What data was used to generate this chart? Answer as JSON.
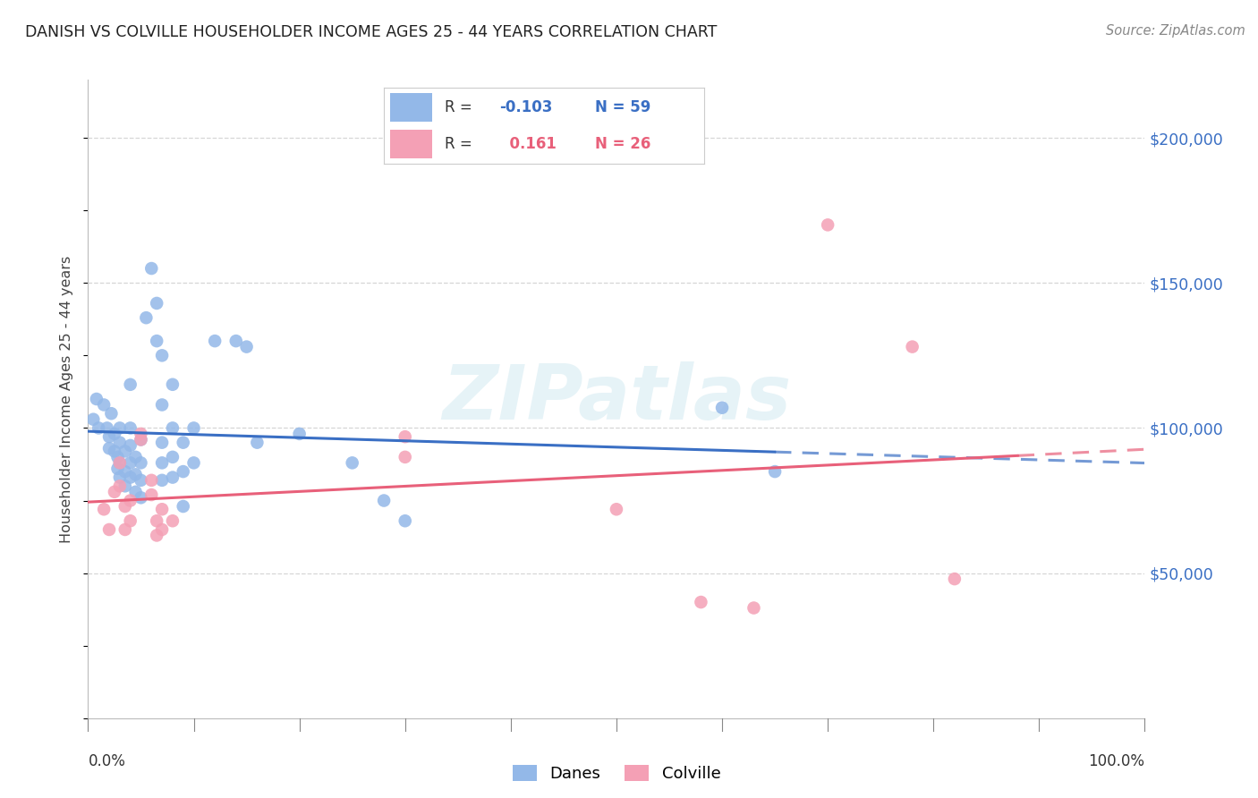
{
  "title": "DANISH VS COLVILLE HOUSEHOLDER INCOME AGES 25 - 44 YEARS CORRELATION CHART",
  "source": "Source: ZipAtlas.com",
  "ylabel": "Householder Income Ages 25 - 44 years",
  "watermark": "ZIPatlas",
  "danes_R": -0.103,
  "danes_N": 59,
  "colville_R": 0.161,
  "colville_N": 26,
  "danes_color": "#93b8e8",
  "colville_color": "#f4a0b5",
  "danes_line_color": "#3a6fc4",
  "colville_line_color": "#e8607a",
  "danes_scatter": [
    [
      0.005,
      103000
    ],
    [
      0.008,
      110000
    ],
    [
      0.01,
      100000
    ],
    [
      0.015,
      108000
    ],
    [
      0.018,
      100000
    ],
    [
      0.02,
      97000
    ],
    [
      0.02,
      93000
    ],
    [
      0.022,
      105000
    ],
    [
      0.025,
      98000
    ],
    [
      0.025,
      92000
    ],
    [
      0.028,
      90000
    ],
    [
      0.028,
      86000
    ],
    [
      0.03,
      100000
    ],
    [
      0.03,
      95000
    ],
    [
      0.03,
      88000
    ],
    [
      0.03,
      83000
    ],
    [
      0.035,
      92000
    ],
    [
      0.035,
      85000
    ],
    [
      0.035,
      80000
    ],
    [
      0.04,
      115000
    ],
    [
      0.04,
      100000
    ],
    [
      0.04,
      94000
    ],
    [
      0.04,
      88000
    ],
    [
      0.04,
      83000
    ],
    [
      0.045,
      90000
    ],
    [
      0.045,
      84000
    ],
    [
      0.045,
      78000
    ],
    [
      0.05,
      96000
    ],
    [
      0.05,
      88000
    ],
    [
      0.05,
      82000
    ],
    [
      0.05,
      76000
    ],
    [
      0.055,
      138000
    ],
    [
      0.06,
      155000
    ],
    [
      0.065,
      143000
    ],
    [
      0.065,
      130000
    ],
    [
      0.07,
      125000
    ],
    [
      0.07,
      108000
    ],
    [
      0.07,
      95000
    ],
    [
      0.07,
      88000
    ],
    [
      0.07,
      82000
    ],
    [
      0.08,
      115000
    ],
    [
      0.08,
      100000
    ],
    [
      0.08,
      90000
    ],
    [
      0.08,
      83000
    ],
    [
      0.09,
      95000
    ],
    [
      0.09,
      85000
    ],
    [
      0.09,
      73000
    ],
    [
      0.1,
      100000
    ],
    [
      0.1,
      88000
    ],
    [
      0.12,
      130000
    ],
    [
      0.14,
      130000
    ],
    [
      0.15,
      128000
    ],
    [
      0.16,
      95000
    ],
    [
      0.2,
      98000
    ],
    [
      0.25,
      88000
    ],
    [
      0.28,
      75000
    ],
    [
      0.3,
      68000
    ],
    [
      0.6,
      107000
    ],
    [
      0.65,
      85000
    ]
  ],
  "colville_scatter": [
    [
      0.015,
      72000
    ],
    [
      0.02,
      65000
    ],
    [
      0.025,
      78000
    ],
    [
      0.03,
      88000
    ],
    [
      0.03,
      80000
    ],
    [
      0.035,
      73000
    ],
    [
      0.035,
      65000
    ],
    [
      0.04,
      75000
    ],
    [
      0.04,
      68000
    ],
    [
      0.05,
      98000
    ],
    [
      0.05,
      96000
    ],
    [
      0.06,
      82000
    ],
    [
      0.06,
      77000
    ],
    [
      0.065,
      68000
    ],
    [
      0.065,
      63000
    ],
    [
      0.07,
      72000
    ],
    [
      0.07,
      65000
    ],
    [
      0.08,
      68000
    ],
    [
      0.3,
      97000
    ],
    [
      0.3,
      90000
    ],
    [
      0.5,
      72000
    ],
    [
      0.58,
      40000
    ],
    [
      0.63,
      38000
    ],
    [
      0.7,
      170000
    ],
    [
      0.78,
      128000
    ],
    [
      0.82,
      48000
    ]
  ],
  "ytick_labels": [
    "$50,000",
    "$100,000",
    "$150,000",
    "$200,000"
  ],
  "ytick_values": [
    50000,
    100000,
    150000,
    200000
  ],
  "ylim": [
    0,
    220000
  ],
  "xlim": [
    0.0,
    1.0
  ],
  "background_color": "#ffffff",
  "grid_color": "#cccccc",
  "legend_items": [
    {
      "label": "R = -0.103  N = 59",
      "R_val": "-0.103",
      "N_val": "59",
      "color": "#93b8e8",
      "text_color": "#3a6fc4"
    },
    {
      "label": "R =  0.161  N = 26",
      "R_val": "0.161",
      "N_val": "26",
      "color": "#f4a0b5",
      "text_color": "#e8607a"
    }
  ],
  "bottom_legend": [
    {
      "label": "Danes",
      "color": "#93b8e8"
    },
    {
      "label": "Colville",
      "color": "#f4a0b5"
    }
  ]
}
